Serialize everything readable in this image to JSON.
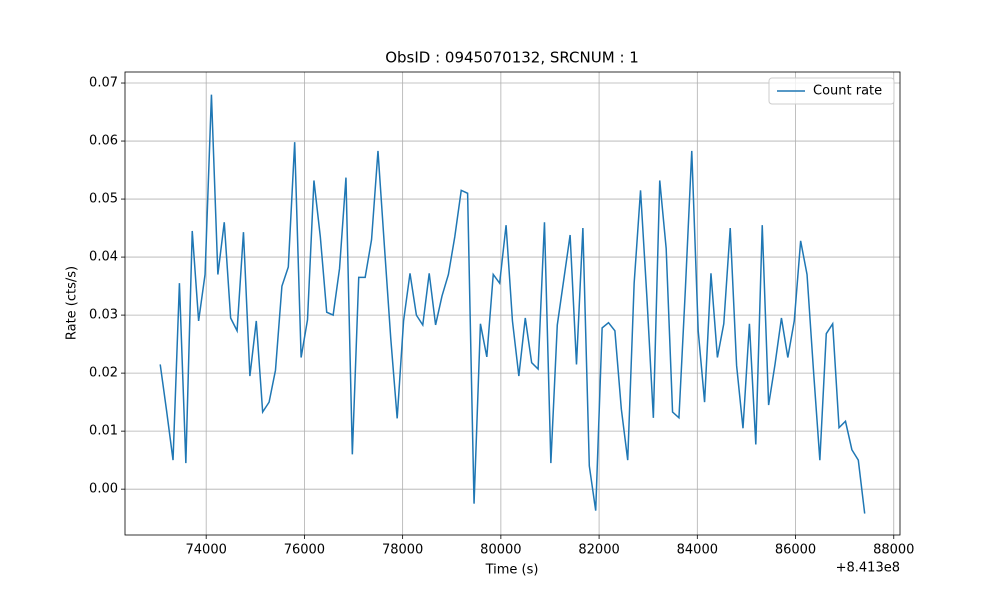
{
  "chart_data": {
    "type": "line",
    "title": "ObsID : 0945070132, SRCNUM : 1",
    "x_label": "Time (s)",
    "y_label": "Rate (cts/s)",
    "x_offset_label": "+8.413e8",
    "xlim": [
      72347,
      88127
    ],
    "ylim": [
      -0.0079,
      0.0719
    ],
    "xticks": [
      74000,
      76000,
      78000,
      80000,
      82000,
      84000,
      86000,
      88000
    ],
    "yticks": [
      {
        "value": 0,
        "label": "0.00"
      },
      0.01,
      0.02,
      0.03,
      0.04,
      0.05,
      0.06,
      0.07
    ],
    "grid": true,
    "legend": "upper right",
    "x": [
      73064,
      73194,
      73325,
      73455,
      73586,
      73716,
      73846,
      73977,
      74107,
      74238,
      74368,
      74498,
      74629,
      74759,
      74890,
      75020,
      75150,
      75281,
      75411,
      75542,
      75672,
      75802,
      75933,
      76063,
      76194,
      76324,
      76454,
      76585,
      76715,
      76846,
      76976,
      77106,
      77237,
      77367,
      77498,
      77628,
      77758,
      77889,
      78019,
      78150,
      78280,
      78410,
      78541,
      78671,
      78802,
      78932,
      79062,
      79193,
      79323,
      79454,
      79584,
      79714,
      79845,
      79975,
      80106,
      80236,
      80366,
      80497,
      80627,
      80758,
      80888,
      81018,
      81149,
      81279,
      81410,
      81540,
      81670,
      81801,
      81931,
      82062,
      82192,
      82322,
      82453,
      82583,
      82714,
      82844,
      82974,
      83105,
      83235,
      83366,
      83496,
      83626,
      83757,
      83887,
      84018,
      84148,
      84278,
      84409,
      84539,
      84670,
      84800,
      84930,
      85061,
      85191,
      85322,
      85452,
      85582,
      85713,
      85843,
      85974,
      86104,
      86234,
      86365,
      86495,
      86626,
      86756,
      86886,
      87017,
      87147,
      87278,
      87408
    ],
    "series": [
      {
        "name": "Count rate",
        "color": "#1f77b4",
        "values": [
          0.0215,
          0.0135,
          0.005,
          0.0355,
          0.0045,
          0.0445,
          0.029,
          0.037,
          0.068,
          0.037,
          0.046,
          0.0295,
          0.0273,
          0.0443,
          0.0195,
          0.029,
          0.0133,
          0.015,
          0.0205,
          0.035,
          0.0383,
          0.0598,
          0.0227,
          0.0292,
          0.0532,
          0.0435,
          0.0305,
          0.03,
          0.038,
          0.0537,
          0.006,
          0.0365,
          0.0365,
          0.043,
          0.0583,
          0.042,
          0.026,
          0.0122,
          0.029,
          0.0372,
          0.03,
          0.0283,
          0.0372,
          0.0283,
          0.0333,
          0.037,
          0.0435,
          0.0515,
          0.051,
          -0.0025,
          0.0285,
          0.0228,
          0.037,
          0.0355,
          0.0455,
          0.029,
          0.0195,
          0.0295,
          0.0218,
          0.0207,
          0.046,
          0.0045,
          0.0283,
          0.036,
          0.0438,
          0.0215,
          0.045,
          0.004,
          -0.0037,
          0.0278,
          0.0287,
          0.0273,
          0.0138,
          0.005,
          0.0355,
          0.0515,
          0.033,
          0.0123,
          0.0532,
          0.0415,
          0.0133,
          0.0123,
          0.0345,
          0.0583,
          0.0273,
          0.015,
          0.0372,
          0.0227,
          0.0285,
          0.045,
          0.0213,
          0.0105,
          0.0285,
          0.0077,
          0.0455,
          0.0145,
          0.0215,
          0.0295,
          0.0227,
          0.029,
          0.0428,
          0.037,
          0.0205,
          0.005,
          0.0268,
          0.0285,
          0.0106,
          0.0117,
          0.0068,
          0.005,
          -0.0042
        ]
      }
    ]
  }
}
